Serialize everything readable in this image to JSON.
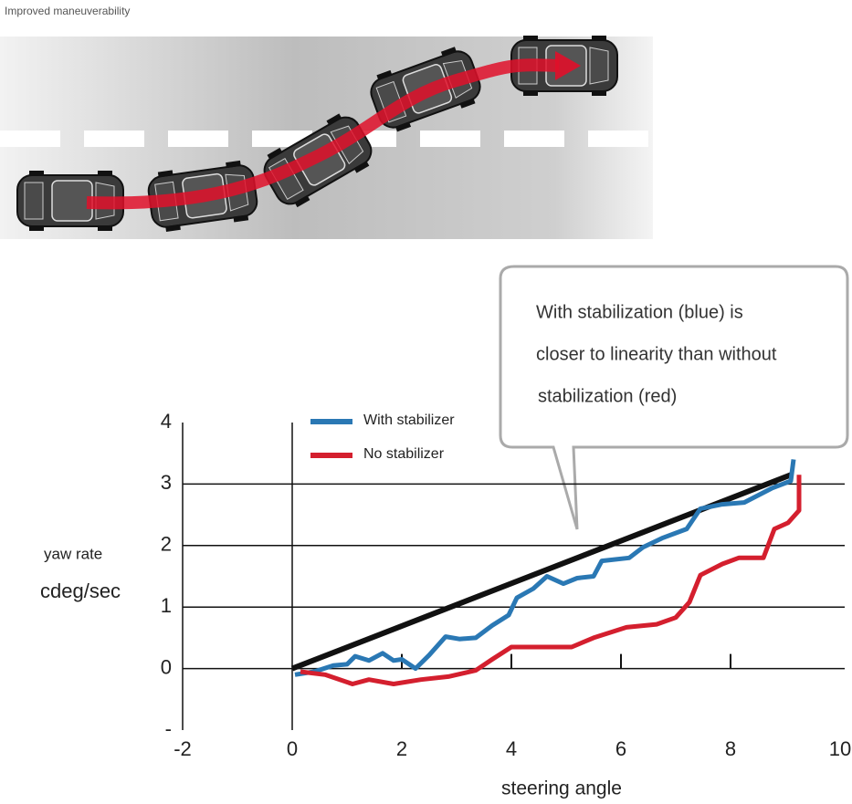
{
  "header": {
    "title": "Improved maneuverability"
  },
  "chart_data": {
    "type": "line",
    "annotation": [
      "With stabilization (blue) is",
      "closer to linearity than without",
      "stabilization (red)"
    ],
    "xlabel": "steering angle",
    "ylabel": [
      "yaw rate",
      "cdeg/sec"
    ],
    "xlim": [
      -2,
      10
    ],
    "ylim": [
      -1,
      4
    ],
    "xticks": [
      -2,
      0,
      2,
      4,
      6,
      8,
      10
    ],
    "yticks": [
      {
        "value": -1,
        "label": "-"
      },
      0,
      1,
      2,
      3,
      4
    ],
    "grid": true,
    "series": [
      {
        "color": "#111111",
        "x": [
          0,
          9.1
        ],
        "values": [
          0,
          3.15
        ]
      },
      {
        "name": "With stabilizer",
        "color": "#2a78b4",
        "x": [
          0.05,
          0.4,
          0.75,
          1.0,
          1.15,
          1.4,
          1.65,
          1.85,
          2.0,
          2.25,
          2.5,
          2.8,
          3.05,
          3.35,
          3.65,
          3.95,
          4.1,
          4.4,
          4.65,
          4.95,
          5.2,
          5.5,
          5.65,
          6.15,
          6.4,
          6.75,
          7.2,
          7.45,
          7.85,
          8.25,
          8.75,
          9.1,
          9.15
        ],
        "values": [
          -0.1,
          -0.05,
          0.05,
          0.07,
          0.2,
          0.13,
          0.25,
          0.13,
          0.15,
          0.0,
          0.22,
          0.52,
          0.48,
          0.5,
          0.7,
          0.87,
          1.15,
          1.3,
          1.5,
          1.38,
          1.47,
          1.5,
          1.75,
          1.8,
          1.97,
          2.12,
          2.27,
          2.6,
          2.67,
          2.7,
          2.93,
          3.05,
          3.4
        ]
      },
      {
        "name": "No stabilizer",
        "color": "#d41f2e",
        "x": [
          0.15,
          0.6,
          1.1,
          1.4,
          1.85,
          2.35,
          2.85,
          3.35,
          3.65,
          4.0,
          4.5,
          5.1,
          5.5,
          6.1,
          6.65,
          7.0,
          7.25,
          7.45,
          7.85,
          8.15,
          8.6,
          8.8,
          9.05,
          9.25,
          9.25
        ],
        "values": [
          -0.05,
          -0.1,
          -0.25,
          -0.18,
          -0.25,
          -0.18,
          -0.13,
          -0.03,
          0.15,
          0.35,
          0.35,
          0.35,
          0.5,
          0.67,
          0.72,
          0.83,
          1.08,
          1.52,
          1.7,
          1.8,
          1.8,
          2.27,
          2.37,
          2.57,
          3.15
        ]
      }
    ]
  }
}
